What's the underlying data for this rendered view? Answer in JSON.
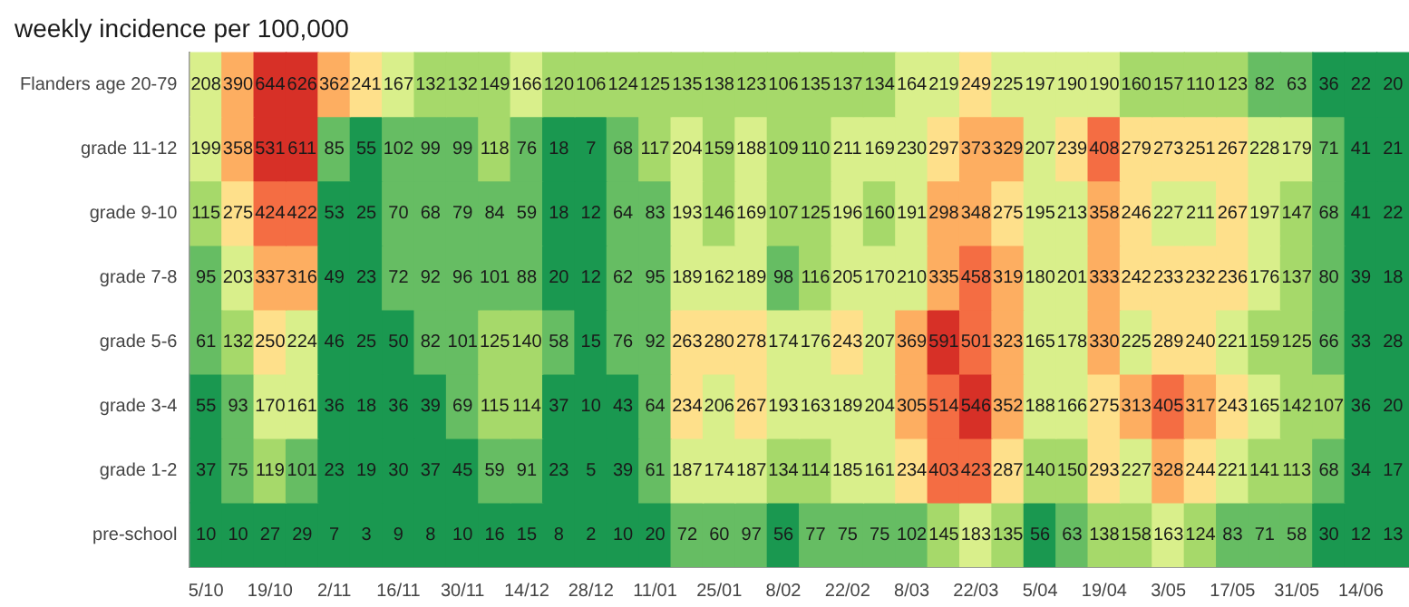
{
  "chart_data": {
    "type": "heatmap",
    "title": "weekly incidence per 100,000",
    "categories": [
      "5/10",
      null,
      "19/10",
      null,
      "2/11",
      null,
      "16/11",
      null,
      "30/11",
      null,
      "14/12",
      null,
      "28/12",
      null,
      "11/01",
      null,
      "25/01",
      null,
      "8/02",
      null,
      "22/02",
      null,
      "8/03",
      null,
      "22/03",
      null,
      "5/04",
      null,
      "19/04",
      null,
      "3/05",
      null,
      "17/05",
      null,
      "31/05",
      null,
      "14/06",
      null
    ],
    "y_categories": [
      "Flanders age 20-79",
      "grade 11-12",
      "grade 9-10",
      "grade 7-8",
      "grade 5-6",
      "grade 3-4",
      "grade 1-2",
      "pre-school"
    ],
    "cells": [
      [
        208,
        390,
        644,
        626,
        362,
        241,
        167,
        132,
        132,
        149,
        166,
        120,
        106,
        124,
        125,
        135,
        138,
        123,
        106,
        135,
        137,
        134,
        164,
        219,
        249,
        225,
        197,
        190,
        190,
        160,
        157,
        110,
        123,
        82,
        63,
        36,
        22,
        20
      ],
      [
        199,
        358,
        531,
        611,
        85,
        55,
        102,
        99,
        99,
        118,
        76,
        18,
        7,
        68,
        117,
        204,
        159,
        188,
        109,
        110,
        211,
        169,
        230,
        297,
        373,
        329,
        207,
        239,
        408,
        279,
        273,
        251,
        267,
        228,
        179,
        71,
        41,
        21
      ],
      [
        115,
        275,
        424,
        422,
        53,
        25,
        70,
        68,
        79,
        84,
        59,
        18,
        12,
        64,
        83,
        193,
        146,
        169,
        107,
        125,
        196,
        160,
        191,
        298,
        348,
        275,
        195,
        213,
        358,
        246,
        227,
        211,
        267,
        197,
        147,
        68,
        41,
        22
      ],
      [
        95,
        203,
        337,
        316,
        49,
        23,
        72,
        92,
        96,
        101,
        88,
        20,
        12,
        62,
        95,
        189,
        162,
        189,
        98,
        116,
        205,
        170,
        210,
        335,
        458,
        319,
        180,
        201,
        333,
        242,
        233,
        232,
        236,
        176,
        137,
        80,
        39,
        18
      ],
      [
        61,
        132,
        250,
        224,
        46,
        25,
        50,
        82,
        101,
        125,
        140,
        58,
        15,
        76,
        92,
        263,
        280,
        278,
        174,
        176,
        243,
        207,
        369,
        591,
        501,
        323,
        165,
        178,
        330,
        225,
        289,
        240,
        221,
        159,
        125,
        66,
        33,
        28
      ],
      [
        55,
        93,
        170,
        161,
        36,
        18,
        36,
        39,
        69,
        115,
        114,
        37,
        10,
        43,
        64,
        234,
        206,
        267,
        193,
        163,
        189,
        204,
        305,
        514,
        546,
        352,
        188,
        166,
        275,
        313,
        405,
        317,
        243,
        165,
        142,
        107,
        36,
        20
      ],
      [
        37,
        75,
        119,
        101,
        23,
        19,
        30,
        37,
        45,
        59,
        91,
        23,
        5,
        39,
        61,
        187,
        174,
        187,
        134,
        114,
        185,
        161,
        234,
        403,
        423,
        287,
        140,
        150,
        293,
        227,
        328,
        244,
        221,
        141,
        113,
        68,
        34,
        17
      ],
      [
        10,
        10,
        27,
        29,
        7,
        3,
        9,
        8,
        10,
        16,
        15,
        8,
        2,
        10,
        20,
        72,
        60,
        97,
        56,
        77,
        75,
        75,
        102,
        145,
        183,
        135,
        56,
        63,
        138,
        158,
        163,
        124,
        83,
        71,
        58,
        30,
        12,
        13
      ]
    ],
    "data_labels": true,
    "grid": false,
    "legend": false
  }
}
